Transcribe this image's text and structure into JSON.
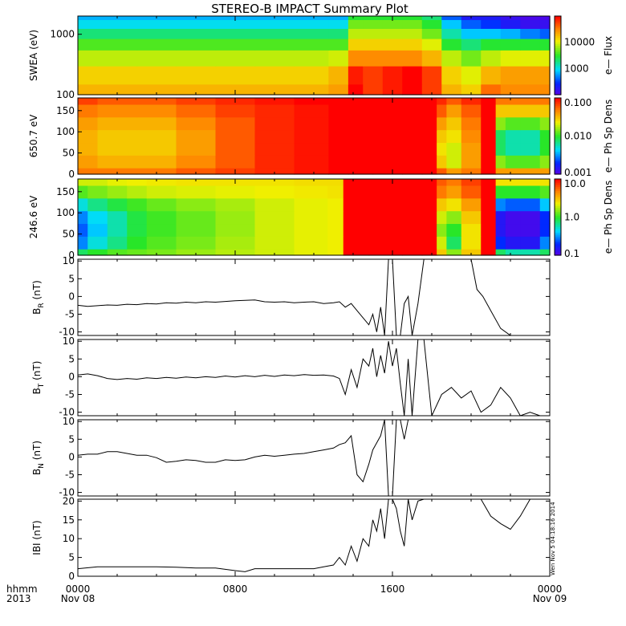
{
  "title": "STEREO-B IMPACT Summary Plot",
  "time_axis": {
    "ticks": [
      {
        "hour": 0,
        "label": "0000",
        "sub": "Nov 08"
      },
      {
        "hour": 8,
        "label": "0800",
        "sub": ""
      },
      {
        "hour": 16,
        "label": "1600",
        "sub": ""
      },
      {
        "hour": 24,
        "label": "0000",
        "sub": "Nov 09"
      }
    ],
    "left_label_top": "hhmm",
    "left_label_bottom": "2013"
  },
  "timestamp": "Wen Nov 5 04:18:16 2014",
  "chart_data": [
    {
      "type": "heatmap",
      "name": "swea",
      "ylabel": "SWEA (eV)",
      "ylog": true,
      "ylim": [
        100,
        2000
      ],
      "yticks": [
        "100",
        "1000"
      ],
      "colorbar": {
        "label": "e— Flux",
        "ticks": [
          "1000",
          "10000"
        ],
        "log": true,
        "range": [
          100,
          100000
        ]
      },
      "x_hours": [
        0,
        2,
        4,
        6,
        8,
        10,
        12,
        13.5,
        14,
        15,
        16,
        17,
        18,
        19,
        20,
        21,
        22,
        23,
        24
      ],
      "y_energy": [
        100,
        200,
        400,
        700,
        1000,
        1500,
        2000
      ],
      "z": [
        [
          20000,
          20000,
          20000,
          20000,
          20000,
          20000,
          20000,
          25000,
          150000,
          60000,
          80000,
          120000,
          60000,
          20000,
          15000,
          40000,
          30000,
          30000,
          30000
        ],
        [
          15000,
          15000,
          15000,
          15000,
          15000,
          15000,
          15000,
          20000,
          80000,
          60000,
          80000,
          100000,
          60000,
          15000,
          10000,
          20000,
          25000,
          25000,
          25000
        ],
        [
          8000,
          8000,
          8000,
          8000,
          8000,
          8000,
          8000,
          9000,
          30000,
          30000,
          30000,
          30000,
          20000,
          8000,
          5000,
          8000,
          10000,
          10000,
          10000
        ],
        [
          4000,
          4000,
          4000,
          4000,
          4000,
          4000,
          4000,
          4000,
          15000,
          15000,
          15000,
          15000,
          10000,
          3000,
          2000,
          3000,
          3000,
          3000,
          3000
        ],
        [
          2000,
          2000,
          2000,
          2000,
          2000,
          2000,
          2000,
          2000,
          8000,
          8000,
          8000,
          8000,
          5000,
          1500,
          800,
          800,
          700,
          500,
          400
        ],
        [
          1000,
          1000,
          1000,
          1000,
          1000,
          1000,
          1000,
          1000,
          5000,
          5000,
          5000,
          5000,
          3000,
          800,
          400,
          300,
          200,
          150,
          150
        ],
        [
          700,
          700,
          700,
          700,
          700,
          700,
          700,
          700,
          3000,
          3000,
          3000,
          3000,
          2000,
          400,
          200,
          200,
          150,
          120,
          120
        ]
      ]
    },
    {
      "type": "heatmap",
      "name": "pad650",
      "ylabel": "650.7 eV",
      "ylog": false,
      "ylim": [
        0,
        180
      ],
      "yticks": [
        "0",
        "50",
        "100",
        "150"
      ],
      "colorbar": {
        "label": "e— Ph Sp Dens",
        "ticks": [
          "0.001",
          "0.010",
          "0.100"
        ],
        "log": true,
        "range": [
          0.001,
          0.1
        ]
      },
      "x_hours": [
        0,
        2,
        4,
        6,
        8,
        10,
        12,
        13.5,
        14,
        16,
        17,
        18,
        18.5,
        19,
        20,
        21,
        21.5,
        22,
        23,
        24
      ],
      "y_pitch": [
        0,
        30,
        60,
        90,
        120,
        150,
        180
      ],
      "z": [
        [
          0.05,
          0.05,
          0.05,
          0.06,
          0.07,
          0.08,
          0.09,
          0.1,
          0.1,
          0.1,
          0.1,
          0.1,
          0.06,
          0.04,
          0.05,
          0.1,
          0.04,
          0.04,
          0.04,
          0.04
        ],
        [
          0.04,
          0.035,
          0.035,
          0.045,
          0.06,
          0.08,
          0.09,
          0.1,
          0.1,
          0.1,
          0.1,
          0.1,
          0.03,
          0.02,
          0.04,
          0.1,
          0.015,
          0.012,
          0.012,
          0.015
        ],
        [
          0.035,
          0.03,
          0.03,
          0.04,
          0.06,
          0.08,
          0.09,
          0.1,
          0.1,
          0.1,
          0.1,
          0.1,
          0.025,
          0.02,
          0.04,
          0.1,
          0.008,
          0.006,
          0.006,
          0.01
        ],
        [
          0.035,
          0.03,
          0.03,
          0.04,
          0.06,
          0.08,
          0.09,
          0.1,
          0.1,
          0.1,
          0.1,
          0.1,
          0.03,
          0.025,
          0.045,
          0.1,
          0.008,
          0.006,
          0.006,
          0.01
        ],
        [
          0.04,
          0.035,
          0.035,
          0.045,
          0.06,
          0.08,
          0.09,
          0.1,
          0.1,
          0.1,
          0.1,
          0.1,
          0.04,
          0.03,
          0.05,
          0.1,
          0.015,
          0.012,
          0.012,
          0.015
        ],
        [
          0.05,
          0.045,
          0.045,
          0.055,
          0.07,
          0.08,
          0.09,
          0.1,
          0.1,
          0.1,
          0.1,
          0.1,
          0.06,
          0.04,
          0.06,
          0.1,
          0.03,
          0.03,
          0.03,
          0.03
        ],
        [
          0.07,
          0.06,
          0.06,
          0.07,
          0.08,
          0.09,
          0.1,
          0.1,
          0.1,
          0.1,
          0.1,
          0.1,
          0.08,
          0.06,
          0.08,
          0.1,
          0.05,
          0.05,
          0.05,
          0.05
        ]
      ]
    },
    {
      "type": "heatmap",
      "name": "pad246",
      "ylabel": "246.6 eV",
      "ylog": false,
      "ylim": [
        0,
        180
      ],
      "yticks": [
        "0",
        "50",
        "100",
        "150"
      ],
      "colorbar": {
        "label": "e— Ph Sp Dens",
        "ticks": [
          "0.1",
          "1.0",
          "10.0"
        ],
        "log": true,
        "range": [
          0.1,
          10
        ]
      },
      "x_hours": [
        0,
        1,
        2,
        3,
        4,
        6,
        8,
        10,
        12,
        13.4,
        13.6,
        16,
        17,
        18,
        18.5,
        19,
        20,
        21,
        21.5,
        22,
        23,
        24
      ],
      "y_pitch": [
        0,
        30,
        60,
        90,
        120,
        150,
        180
      ],
      "z": [
        [
          0.8,
          1.0,
          1.2,
          1.3,
          1.4,
          1.6,
          1.8,
          2.0,
          2.2,
          2.3,
          10,
          10,
          10,
          10,
          3,
          1.5,
          3,
          10,
          0.8,
          0.6,
          0.6,
          0.8
        ],
        [
          0.3,
          0.5,
          0.7,
          1.0,
          1.2,
          1.4,
          1.7,
          2.0,
          2.2,
          2.3,
          10,
          10,
          10,
          10,
          2,
          0.8,
          2.5,
          10,
          0.2,
          0.15,
          0.15,
          0.3
        ],
        [
          0.25,
          0.4,
          0.6,
          0.9,
          1.1,
          1.3,
          1.6,
          2.0,
          2.2,
          2.3,
          10,
          10,
          10,
          10,
          1.5,
          1.0,
          2.5,
          10,
          0.15,
          0.12,
          0.12,
          0.2
        ],
        [
          0.3,
          0.45,
          0.6,
          0.9,
          1.1,
          1.3,
          1.6,
          2.0,
          2.2,
          2.3,
          10,
          10,
          10,
          10,
          2,
          1.5,
          3,
          10,
          0.15,
          0.12,
          0.12,
          0.2
        ],
        [
          0.5,
          0.7,
          0.9,
          1.1,
          1.3,
          1.5,
          1.7,
          2.0,
          2.2,
          2.3,
          10,
          10,
          10,
          10,
          3,
          2.5,
          4,
          10,
          0.3,
          0.25,
          0.25,
          0.4
        ],
        [
          1.2,
          1.4,
          1.6,
          1.8,
          2.0,
          2.1,
          2.2,
          2.3,
          2.4,
          2.5,
          10,
          10,
          10,
          10,
          5,
          4,
          6,
          10,
          1.0,
          1.0,
          1.0,
          1.2
        ],
        [
          2.0,
          2.0,
          2.2,
          2.3,
          2.4,
          2.5,
          2.5,
          2.5,
          2.6,
          2.6,
          10,
          10,
          10,
          10,
          6,
          5,
          7,
          10,
          2.5,
          2.5,
          2.5,
          2.5
        ]
      ]
    },
    {
      "type": "line",
      "name": "br",
      "ylabel_main": "B",
      "ylabel_sub": "R",
      "ylabel_unit": " (nT)",
      "ylim": [
        -11,
        10.5
      ],
      "yticks": [
        -10,
        -5,
        0,
        5,
        10
      ],
      "x": [
        0,
        0.5,
        1,
        1.5,
        2,
        2.5,
        3,
        3.5,
        4,
        4.5,
        5,
        5.5,
        6,
        6.5,
        7,
        7.5,
        8,
        8.5,
        9,
        9.5,
        10,
        10.5,
        11,
        11.5,
        12,
        12.5,
        13,
        13.3,
        13.6,
        13.9,
        14.2,
        14.5,
        14.8,
        15,
        15.2,
        15.4,
        15.6,
        15.8,
        16,
        16.2,
        16.4,
        16.6,
        16.8,
        17,
        17.3,
        17.6,
        18,
        18.5,
        19,
        19.5,
        20,
        20.3,
        20.6,
        21,
        21.5,
        22,
        22.5
      ],
      "y": [
        -2.5,
        -2.8,
        -2.6,
        -2.4,
        -2.5,
        -2.2,
        -2.3,
        -2.0,
        -2.1,
        -1.8,
        -1.9,
        -1.6,
        -1.8,
        -1.5,
        -1.6,
        -1.4,
        -1.2,
        -1.1,
        -1.0,
        -1.5,
        -1.6,
        -1.5,
        -1.8,
        -1.6,
        -1.5,
        -2.0,
        -1.8,
        -1.5,
        -3.0,
        -2.0,
        -4.0,
        -6.0,
        -8.0,
        -5.0,
        -10.0,
        -3.0,
        -11.0,
        10.5,
        10.5,
        -11.0,
        -11.0,
        -2.0,
        0.0,
        -11.0,
        -2.0,
        10.5,
        10.5,
        10.5,
        10.5,
        10.5,
        10.5,
        2.0,
        0.0,
        -4.0,
        -9.0,
        -11.0,
        -11.0
      ]
    },
    {
      "type": "line",
      "name": "bt",
      "ylabel_main": "B",
      "ylabel_sub": "T",
      "ylabel_unit": " (nT)",
      "ylim": [
        -11,
        10.5
      ],
      "yticks": [
        -10,
        -5,
        0,
        5,
        10
      ],
      "x": [
        0,
        0.5,
        1,
        1.5,
        2,
        2.5,
        3,
        3.5,
        4,
        4.5,
        5,
        5.5,
        6,
        6.5,
        7,
        7.5,
        8,
        8.5,
        9,
        9.5,
        10,
        10.5,
        11,
        11.5,
        12,
        12.5,
        13,
        13.3,
        13.6,
        13.9,
        14.2,
        14.5,
        14.8,
        15,
        15.2,
        15.4,
        15.6,
        15.8,
        16,
        16.2,
        16.4,
        16.6,
        16.8,
        17,
        17.3,
        17.6,
        18,
        18.5,
        19,
        19.5,
        20,
        20.5,
        21,
        21.5,
        22,
        22.5,
        23,
        23.5,
        24
      ],
      "y": [
        0.5,
        0.8,
        0.3,
        -0.5,
        -0.8,
        -0.5,
        -0.7,
        -0.3,
        -0.5,
        -0.2,
        -0.4,
        -0.1,
        -0.3,
        0.0,
        -0.2,
        0.2,
        -0.1,
        0.3,
        0.0,
        0.4,
        0.1,
        0.5,
        0.3,
        0.6,
        0.4,
        0.5,
        0.2,
        -0.5,
        -5.0,
        2.0,
        -3.0,
        5.0,
        3.0,
        8.0,
        0.0,
        6.0,
        1.0,
        10.0,
        3.0,
        8.0,
        -2.0,
        -11.0,
        5.0,
        -11.0,
        10.5,
        10.5,
        -11.0,
        -5.0,
        -3.0,
        -6.0,
        -4.0,
        -10.0,
        -8.0,
        -3.0,
        -6.0,
        -11.0,
        -10.0,
        -11.0,
        -11.0
      ]
    },
    {
      "type": "line",
      "name": "bn",
      "ylabel_main": "B",
      "ylabel_sub": "N",
      "ylabel_unit": " (nT)",
      "ylim": [
        -11,
        10.5
      ],
      "yticks": [
        -10,
        -5,
        0,
        5,
        10
      ],
      "x": [
        0,
        0.5,
        1,
        1.5,
        2,
        2.5,
        3,
        3.5,
        4,
        4.5,
        5,
        5.5,
        6,
        6.5,
        7,
        7.5,
        8,
        8.5,
        9,
        9.5,
        10,
        10.5,
        11,
        11.5,
        12,
        12.5,
        13,
        13.3,
        13.6,
        13.9,
        14.2,
        14.5,
        14.8,
        15,
        15.2,
        15.4,
        15.6,
        15.8,
        16,
        16.2,
        16.4,
        16.6,
        16.8,
        17
      ],
      "y": [
        0.5,
        0.8,
        0.8,
        1.5,
        1.5,
        1.0,
        0.5,
        0.5,
        -0.2,
        -1.5,
        -1.2,
        -0.8,
        -1.0,
        -1.5,
        -1.5,
        -0.8,
        -1.0,
        -0.8,
        0.0,
        0.5,
        0.2,
        0.5,
        0.8,
        1.0,
        1.5,
        2.0,
        2.5,
        3.5,
        4.0,
        6.0,
        -5.0,
        -7.0,
        -2.0,
        2.0,
        4.0,
        6.0,
        10.5,
        -11.0,
        -11.0,
        10.5,
        10.5,
        5.0,
        10.5,
        10.5
      ]
    },
    {
      "type": "line",
      "name": "bmag",
      "ylabel_main": "IBI (nT)",
      "ylim": [
        0,
        20.5
      ],
      "yticks": [
        0,
        5,
        10,
        15,
        20
      ],
      "x": [
        0,
        1,
        2,
        3,
        4,
        5,
        6,
        7,
        8,
        8.5,
        9,
        10,
        11,
        12,
        12.5,
        13,
        13.3,
        13.6,
        13.9,
        14.2,
        14.5,
        14.8,
        15,
        15.2,
        15.4,
        15.6,
        15.8,
        16,
        16.2,
        16.4,
        16.6,
        16.8,
        17,
        17.3,
        17.6,
        18,
        18.5,
        19,
        19.5,
        20,
        20.5,
        21,
        21.5,
        22,
        22.5,
        23,
        23.5,
        24
      ],
      "y": [
        2.0,
        2.5,
        2.5,
        2.5,
        2.5,
        2.4,
        2.2,
        2.2,
        1.5,
        1.2,
        2.0,
        2.0,
        2.0,
        2.0,
        2.5,
        3.0,
        5.0,
        3.0,
        8.0,
        4.0,
        10.0,
        8.0,
        15.0,
        12.0,
        18.0,
        10.0,
        20.5,
        20.5,
        18.0,
        12.0,
        8.0,
        20.5,
        15.0,
        20.0,
        20.5,
        20.5,
        20.5,
        20.5,
        20.5,
        20.5,
        20.5,
        16.0,
        14.0,
        12.5,
        16.0,
        20.5,
        20.5,
        20.5
      ]
    }
  ]
}
